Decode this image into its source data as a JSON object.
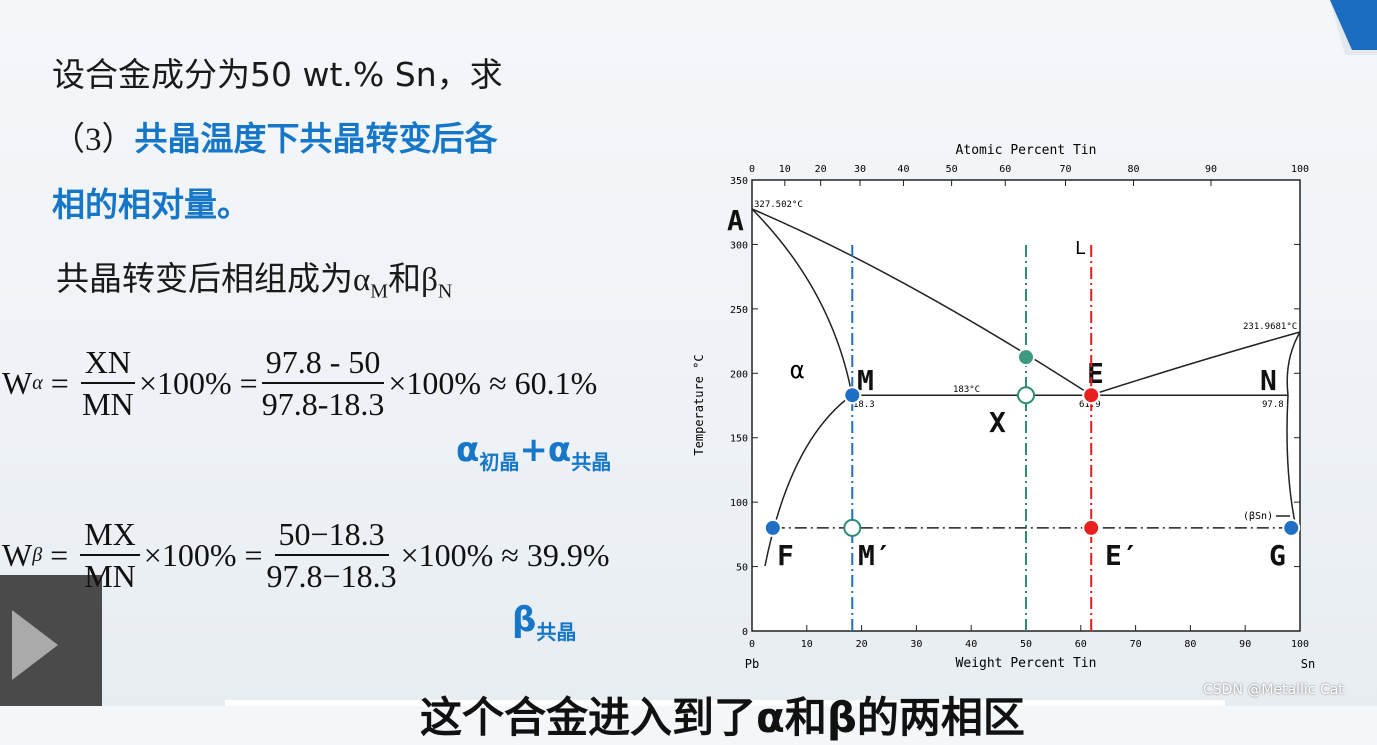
{
  "slide": {
    "question": "设合金成分为50 wt.% Sn，求",
    "part": "（3）",
    "part_title": "共晶温度下共晶转变后各",
    "part_title2": "相的相对量。",
    "phases": {
      "text": "共晶转变后相组成为",
      "a": "α",
      "a_sub": "M",
      "and": "和",
      "b": "β",
      "b_sub": "N"
    },
    "formula_a": {
      "lhs": "W",
      "sub": "α",
      "eq": "=",
      "num": "XN",
      "den": "MN",
      "mid": "×100% =",
      "num2": "97.8 - 50",
      "den2": "97.8-18.3",
      "result": "×100% ≈ 60.1%",
      "note": "α",
      "note_sub": "初晶",
      "plus": "+",
      "note2": "α",
      "note2_sub": "共晶"
    },
    "formula_b": {
      "lhs": "W",
      "sub": "β",
      "eq": "=",
      "num": "MX",
      "den": "MN",
      "mid": "×100% =",
      "num2": "50−18.3",
      "den2": "97.8−18.3",
      "result": "×100% ≈ 39.9%",
      "note": "β",
      "note_sub": "共晶"
    }
  },
  "diagram": {
    "top_title": "Atomic Percent Tin",
    "x_title": "Weight Percent Tin",
    "y_title": "Temperature °C",
    "left_end": "Pb",
    "right_end": "Sn",
    "xlim": [
      0,
      100
    ],
    "xticks": [
      0,
      10,
      20,
      30,
      40,
      50,
      60,
      70,
      80,
      90,
      100
    ],
    "top_ticks": [
      0,
      10,
      20,
      30,
      40,
      50,
      60,
      70,
      80,
      90,
      100
    ],
    "ylim": [
      0,
      350
    ],
    "yticks": [
      0,
      50,
      100,
      150,
      200,
      250,
      300,
      350
    ],
    "notes": [
      "327.502°C",
      "231.9681°C",
      "183°C",
      "18.3",
      "61.9",
      "97.8",
      "(βSn)"
    ],
    "point_labels": [
      "A",
      "M",
      "E",
      "N",
      "X",
      "F",
      "M′",
      "E′",
      "G"
    ],
    "phase_labels": [
      "α",
      "L"
    ],
    "guides": [
      {
        "wt": 18.3,
        "color": "#1f6fc4"
      },
      {
        "wt": 50,
        "color": "#2e8b74"
      },
      {
        "wt": 61.9,
        "color": "#e02020"
      }
    ],
    "isotherms": [
      {
        "T": 183,
        "from": 18.3,
        "to": 97.8,
        "style": "solid"
      },
      {
        "T": 80,
        "from": 3.8,
        "to": 98.4,
        "style": "dashdot"
      }
    ],
    "markers": [
      {
        "wt": 18.3,
        "T": 183,
        "fill": "#1f6fc4"
      },
      {
        "wt": 50,
        "T": 212.5,
        "fill": "#3d9a80"
      },
      {
        "wt": 50,
        "T": 183,
        "fill": "open"
      },
      {
        "wt": 61.9,
        "T": 183,
        "fill": "#e82020"
      },
      {
        "wt": 3.8,
        "T": 80,
        "fill": "#1f6fc4"
      },
      {
        "wt": 18.3,
        "T": 80,
        "fill": "open"
      },
      {
        "wt": 61.9,
        "T": 80,
        "fill": "#e82020"
      },
      {
        "wt": 98.4,
        "T": 80,
        "fill": "#1f6fc4"
      }
    ]
  },
  "caption": "这个合金进入到了α和β的两相区",
  "watermark": "CSDN @Metallic Cat"
}
